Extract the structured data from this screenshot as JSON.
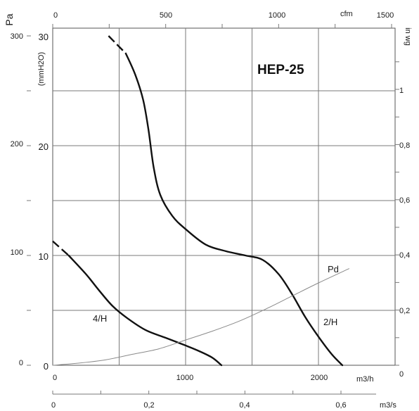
{
  "chart_data": {
    "type": "line",
    "title": "HEP-25",
    "axes": {
      "left_pa": {
        "label": "Pa",
        "ticks": [
          "0",
          "100",
          "200",
          "300"
        ]
      },
      "left_mmh2o": {
        "label": "(mmH2O)",
        "ticks": [
          "0",
          "10",
          "20",
          "30"
        ]
      },
      "right_inwg": {
        "label": "in wg",
        "ticks": [
          "0",
          "0,2",
          "0,4",
          "0,6",
          "0,8",
          "1"
        ]
      },
      "bottom_m3h": {
        "unit": "m3/h",
        "ticks": [
          "0",
          "1000",
          "2000"
        ]
      },
      "bottom_m3s": {
        "unit": "m3/s",
        "ticks": [
          "0",
          "0,2",
          "0,4",
          "0,6"
        ]
      },
      "top_cfm": {
        "unit": "cfm",
        "ticks": [
          "0",
          "500",
          "1000",
          "1500"
        ]
      }
    },
    "xlim_m3h": [
      0,
      2320
    ],
    "ylim_mmh2o": [
      0,
      30
    ],
    "grid": true,
    "series": [
      {
        "name": "2/H",
        "dashed_start": [
          [
            420,
            30.0
          ],
          [
            550,
            28.4
          ]
        ],
        "points": [
          [
            550,
            28.4
          ],
          [
            620,
            26.5
          ],
          [
            680,
            24.2
          ],
          [
            720,
            21.5
          ],
          [
            760,
            18.0
          ],
          [
            810,
            15.5
          ],
          [
            900,
            13.6
          ],
          [
            1000,
            12.4
          ],
          [
            1150,
            11.0
          ],
          [
            1300,
            10.4
          ],
          [
            1450,
            10.0
          ],
          [
            1580,
            9.6
          ],
          [
            1700,
            8.3
          ],
          [
            1800,
            6.5
          ],
          [
            1900,
            4.4
          ],
          [
            2000,
            2.6
          ],
          [
            2100,
            1.0
          ],
          [
            2180,
            0.0
          ]
        ]
      },
      {
        "name": "4/H",
        "dashed_start": [
          [
            0,
            11.3
          ],
          [
            120,
            10.0
          ]
        ],
        "points": [
          [
            120,
            10.0
          ],
          [
            250,
            8.3
          ],
          [
            350,
            6.8
          ],
          [
            450,
            5.4
          ],
          [
            560,
            4.3
          ],
          [
            700,
            3.2
          ],
          [
            850,
            2.5
          ],
          [
            1000,
            1.8
          ],
          [
            1100,
            1.3
          ],
          [
            1200,
            0.7
          ],
          [
            1270,
            0.0
          ]
        ]
      },
      {
        "name": "Pd",
        "thin": true,
        "points": [
          [
            0,
            0.0
          ],
          [
            200,
            0.2
          ],
          [
            400,
            0.5
          ],
          [
            600,
            1.0
          ],
          [
            800,
            1.5
          ],
          [
            1000,
            2.3
          ],
          [
            1200,
            3.1
          ],
          [
            1400,
            4.0
          ],
          [
            1600,
            5.1
          ],
          [
            1800,
            6.3
          ],
          [
            2000,
            7.5
          ],
          [
            2230,
            8.8
          ]
        ]
      }
    ]
  },
  "labels": {
    "title": "HEP-25",
    "pa": "Pa",
    "mmh2o": "(mmH2O)",
    "inwg": "in wg",
    "cfm": "cfm",
    "m3h": "m3/h",
    "m3s": "m3/s",
    "series_2h": "2/H",
    "series_4h": "4/H",
    "series_pd": "Pd"
  },
  "colors": {
    "curve": "#111111",
    "pd": "#8a8a8a",
    "grid": "#7a7a7a"
  }
}
